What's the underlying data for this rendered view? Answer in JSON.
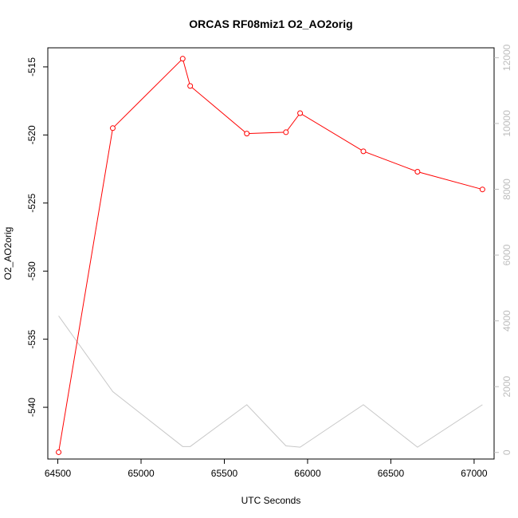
{
  "chart_data": {
    "type": "line",
    "title": "ORCAS RF08miz1 O2_AO2orig",
    "xlabel": "UTC Seconds",
    "ylabel": "O2_AO2orig",
    "xlim": [
      64440,
      67120
    ],
    "x_ticks": [
      64500,
      65000,
      65500,
      66000,
      66500,
      67000
    ],
    "y_left_lim": [
      -543.8,
      -513.6
    ],
    "y_left_ticks": [
      -540,
      -535,
      -530,
      -525,
      -520,
      -515
    ],
    "y_right_lim": [
      -200,
      12300
    ],
    "y_right_ticks": [
      0,
      2000,
      4000,
      6000,
      8000,
      10000,
      12000
    ],
    "grid": false,
    "series": [
      {
        "axis": "left",
        "color": "#ff0000",
        "marker": "circle",
        "x": [
          64505,
          64830,
          65250,
          65295,
          65635,
          65870,
          65955,
          66335,
          66660,
          67050
        ],
        "y": [
          -543.3,
          -519.5,
          -514.4,
          -516.4,
          -519.9,
          -519.8,
          -518.4,
          -521.2,
          -522.7,
          -524.0
        ]
      },
      {
        "axis": "right",
        "color": "#c8c8c8",
        "marker": "none",
        "x": [
          64505,
          64830,
          65250,
          65295,
          65635,
          65870,
          65955,
          66335,
          66660,
          67050
        ],
        "y": [
          4150,
          1850,
          180,
          180,
          1450,
          200,
          160,
          1450,
          160,
          1450
        ]
      }
    ]
  }
}
